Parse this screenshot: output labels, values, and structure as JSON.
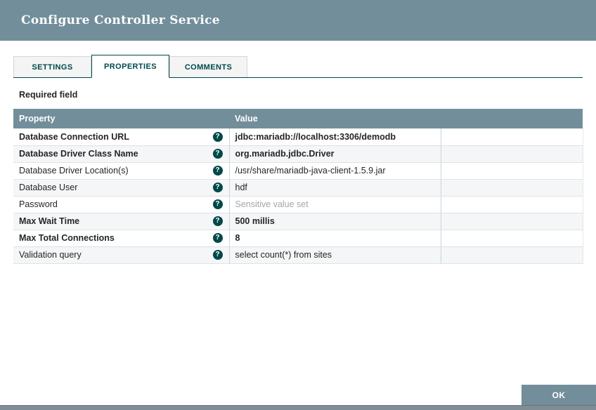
{
  "dialog": {
    "title": "Configure Controller Service",
    "tabs": [
      {
        "label": "SETTINGS",
        "active": false
      },
      {
        "label": "PROPERTIES",
        "active": true
      },
      {
        "label": "COMMENTS",
        "active": false
      }
    ],
    "required_field_label": "Required field",
    "help_icon": "question-circle",
    "table": {
      "columns": [
        "Property",
        "Value"
      ],
      "rows": [
        {
          "property": "Database Connection URL",
          "value": "jdbc:mariadb://localhost:3306/demodb",
          "required": true,
          "sensitive": false
        },
        {
          "property": "Database Driver Class Name",
          "value": "org.mariadb.jdbc.Driver",
          "required": true,
          "sensitive": false
        },
        {
          "property": "Database Driver Location(s)",
          "value": "/usr/share/mariadb-java-client-1.5.9.jar",
          "required": false,
          "sensitive": false
        },
        {
          "property": "Database User",
          "value": "hdf",
          "required": false,
          "sensitive": false
        },
        {
          "property": "Password",
          "value": "Sensitive value set",
          "required": false,
          "sensitive": true
        },
        {
          "property": "Max Wait Time",
          "value": "500 millis",
          "required": true,
          "sensitive": false
        },
        {
          "property": "Max Total Connections",
          "value": "8",
          "required": true,
          "sensitive": false
        },
        {
          "property": "Validation query",
          "value": "select count(*) from sites",
          "required": false,
          "sensitive": false
        }
      ]
    },
    "ok_button_label": "OK",
    "colors": {
      "header_bg": "#728e9b",
      "accent_teal": "#004849",
      "row_alt_bg": "#f4f6f7",
      "muted_text": "#a5a5a5",
      "background_strip": "#7f8d97"
    }
  }
}
